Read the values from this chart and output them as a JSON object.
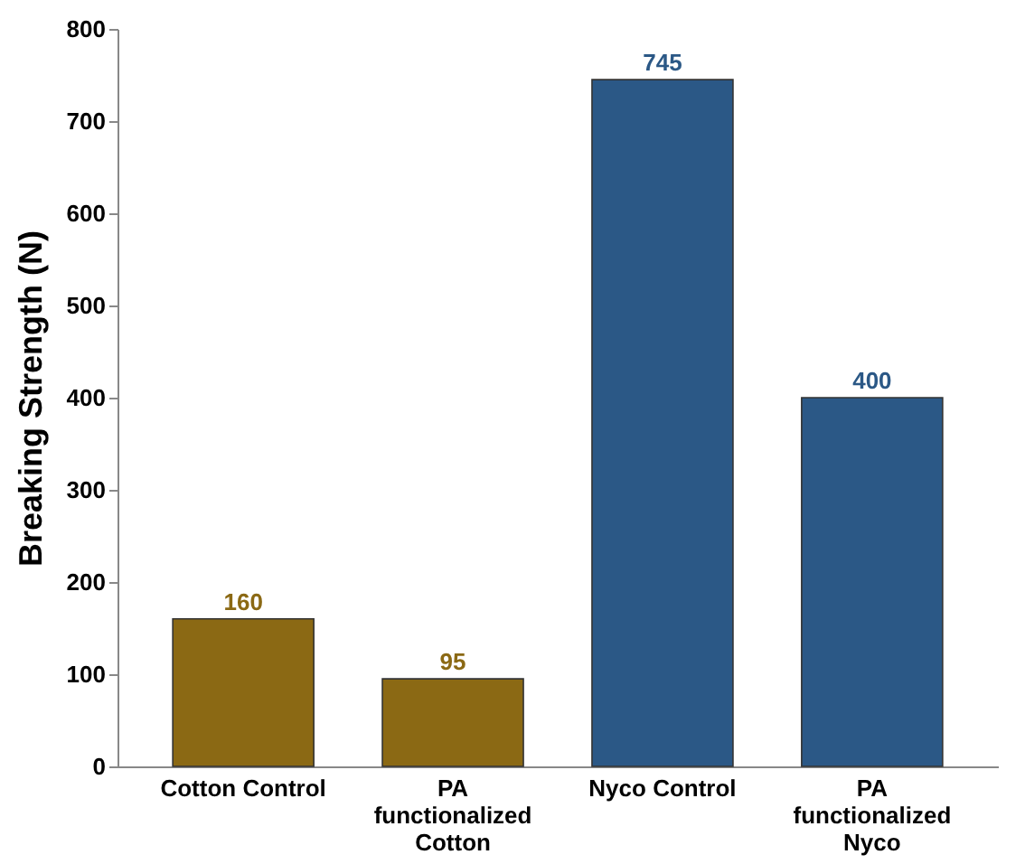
{
  "chart_data": {
    "type": "bar",
    "ylabel": "Breaking Strength (N)",
    "categories": [
      "Cotton Control",
      "PA functionalized Cotton",
      "Nyco Control",
      "PA functionalized Nyco"
    ],
    "values": [
      160,
      95,
      745,
      400
    ],
    "colors": [
      "#8b6914",
      "#8b6914",
      "#2b5886",
      "#2b5886"
    ],
    "ylim": [
      0,
      800
    ],
    "yticks": [
      0,
      100,
      200,
      300,
      400,
      500,
      600,
      700,
      800
    ],
    "data_labels": true,
    "grid": false
  }
}
